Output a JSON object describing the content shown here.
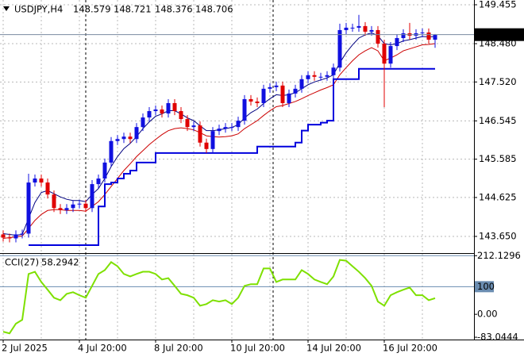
{
  "chart_data": [
    {
      "type": "candlestick",
      "symbol": "USDJPY,H4",
      "categories": [
        "2 Jul 2025",
        null,
        null,
        null,
        null,
        null,
        null,
        null,
        null,
        null,
        null,
        null,
        "4 Jul 20:00",
        null,
        null,
        null,
        null,
        null,
        null,
        null,
        null,
        null,
        null,
        null,
        "8 Jul 20:00",
        null,
        null,
        null,
        null,
        null,
        null,
        null,
        null,
        null,
        null,
        null,
        "10 Jul 20:00",
        null,
        null,
        null,
        null,
        null,
        null,
        null,
        null,
        null,
        null,
        null,
        "14 Jul 20:00",
        null,
        null,
        null,
        null,
        null,
        null,
        null,
        null,
        null,
        null,
        null,
        "16 Jul 20:00",
        null,
        null,
        null,
        null,
        null,
        null,
        null,
        null
      ],
      "open": [
        143.7,
        143.62,
        143.6,
        143.7,
        143.72,
        145.0,
        145.1,
        145.0,
        144.7,
        144.36,
        144.31,
        144.36,
        144.45,
        144.47,
        144.36,
        144.96,
        145.1,
        145.5,
        146.04,
        146.09,
        146.15,
        146.09,
        146.39,
        146.63,
        146.79,
        146.83,
        146.73,
        146.99,
        146.79,
        146.59,
        146.39,
        146.43,
        146.0,
        145.84,
        146.29,
        146.35,
        146.39,
        146.39,
        146.55,
        147.09,
        147.03,
        146.99,
        147.35,
        147.39,
        147.43,
        146.99,
        147.23,
        147.35,
        147.59,
        147.69,
        147.65,
        147.65,
        147.69,
        147.88,
        148.82,
        148.88,
        148.88,
        148.92,
        148.78,
        148.82,
        148.48,
        147.98,
        148.42,
        148.62,
        148.74,
        148.68,
        148.74,
        148.76,
        148.579
      ],
      "high": [
        143.8,
        143.72,
        143.8,
        143.82,
        145.22,
        145.2,
        145.2,
        145.1,
        144.8,
        144.46,
        144.46,
        144.55,
        144.57,
        144.57,
        145.06,
        145.2,
        145.6,
        146.14,
        146.19,
        146.25,
        146.25,
        146.49,
        146.73,
        146.89,
        146.93,
        146.93,
        147.09,
        147.09,
        146.89,
        146.69,
        146.53,
        146.53,
        146.1,
        146.39,
        146.45,
        146.49,
        146.49,
        146.65,
        147.19,
        147.19,
        147.13,
        147.45,
        147.49,
        147.53,
        147.53,
        147.33,
        147.45,
        147.69,
        147.79,
        147.79,
        147.75,
        147.79,
        147.98,
        148.98,
        149.0,
        148.98,
        149.2,
        149.02,
        148.92,
        148.92,
        148.58,
        148.52,
        148.72,
        148.84,
        149.0,
        148.84,
        148.86,
        148.86,
        148.721
      ],
      "low": [
        143.52,
        143.5,
        143.5,
        143.6,
        143.62,
        144.9,
        144.9,
        144.6,
        144.26,
        144.21,
        144.21,
        144.26,
        144.35,
        144.26,
        144.26,
        144.86,
        145.0,
        145.4,
        145.94,
        145.99,
        145.99,
        145.99,
        146.29,
        146.53,
        146.69,
        146.63,
        146.63,
        146.69,
        146.49,
        146.29,
        146.29,
        145.9,
        145.74,
        145.74,
        146.19,
        146.25,
        146.29,
        146.29,
        146.45,
        146.93,
        146.89,
        146.89,
        147.25,
        147.29,
        146.89,
        146.89,
        147.13,
        147.25,
        147.49,
        147.55,
        147.55,
        147.55,
        147.59,
        147.78,
        148.72,
        148.78,
        148.78,
        148.68,
        148.68,
        148.38,
        146.89,
        147.88,
        148.32,
        148.52,
        148.58,
        148.58,
        148.64,
        148.48,
        148.376
      ],
      "close": [
        143.62,
        143.6,
        143.7,
        143.72,
        145.0,
        145.1,
        145.0,
        144.7,
        144.36,
        144.31,
        144.36,
        144.45,
        144.47,
        144.36,
        144.96,
        145.1,
        145.5,
        146.04,
        146.09,
        146.15,
        146.09,
        146.39,
        146.63,
        146.79,
        146.83,
        146.73,
        146.99,
        146.79,
        146.59,
        146.39,
        146.43,
        146.0,
        145.84,
        146.29,
        146.35,
        146.39,
        146.39,
        146.55,
        147.09,
        147.03,
        146.99,
        147.35,
        147.39,
        147.43,
        146.99,
        147.23,
        147.35,
        147.59,
        147.69,
        147.65,
        147.65,
        147.69,
        147.88,
        148.82,
        148.88,
        148.88,
        148.92,
        148.78,
        148.82,
        148.48,
        147.98,
        148.42,
        148.62,
        148.74,
        148.68,
        148.74,
        148.76,
        148.58,
        148.706
      ],
      "up_color": "#1010e0",
      "down_color": "#e00000",
      "overlays": [
        {
          "color": "#000080",
          "style": "line",
          "values": [
            143.72,
            143.7,
            143.68,
            143.7,
            144.1,
            144.5,
            144.75,
            144.8,
            144.72,
            144.64,
            144.58,
            144.55,
            144.55,
            144.52,
            144.7,
            144.85,
            145.1,
            145.4,
            145.65,
            145.85,
            145.98,
            146.15,
            146.35,
            146.52,
            146.66,
            146.72,
            146.8,
            146.8,
            146.72,
            146.62,
            146.55,
            146.42,
            146.3,
            146.3,
            146.32,
            146.35,
            146.38,
            146.45,
            146.62,
            146.75,
            146.84,
            146.98,
            147.1,
            147.2,
            147.18,
            147.2,
            147.25,
            147.35,
            147.45,
            147.52,
            147.57,
            147.62,
            147.7,
            148.0,
            148.25,
            148.45,
            148.62,
            148.7,
            148.75,
            148.68,
            148.48,
            148.45,
            148.48,
            148.55,
            148.58,
            148.62,
            148.66,
            148.65,
            148.66
          ]
        },
        {
          "color": "#cc0000",
          "style": "line",
          "values": [
            143.6,
            143.62,
            143.64,
            143.66,
            143.85,
            144.05,
            144.2,
            144.3,
            144.32,
            144.32,
            144.3,
            144.3,
            144.3,
            144.28,
            144.4,
            144.52,
            144.7,
            144.9,
            145.1,
            145.3,
            145.47,
            145.65,
            145.8,
            145.95,
            146.08,
            146.2,
            146.3,
            146.35,
            146.37,
            146.35,
            146.32,
            146.25,
            146.17,
            146.15,
            146.14,
            146.15,
            146.17,
            146.22,
            146.35,
            146.45,
            146.55,
            146.68,
            146.8,
            146.9,
            146.93,
            146.98,
            147.03,
            147.1,
            147.18,
            147.25,
            147.32,
            147.38,
            147.45,
            147.7,
            147.88,
            148.05,
            148.2,
            148.3,
            148.38,
            148.3,
            148.05,
            148.12,
            148.2,
            148.3,
            148.35,
            148.4,
            148.45,
            148.46,
            148.48
          ]
        },
        {
          "color": "#0000dd",
          "style": "step",
          "values": [
            null,
            null,
            null,
            null,
            143.43,
            143.43,
            143.43,
            143.43,
            143.43,
            143.43,
            143.43,
            143.43,
            143.43,
            143.43,
            143.43,
            144.4,
            144.96,
            145.0,
            145.1,
            145.22,
            145.3,
            145.5,
            145.5,
            145.5,
            145.74,
            145.74,
            145.74,
            145.74,
            145.74,
            145.74,
            145.74,
            145.74,
            145.74,
            145.74,
            145.74,
            145.74,
            145.74,
            145.74,
            145.74,
            145.74,
            145.9,
            145.9,
            145.9,
            145.9,
            145.9,
            145.9,
            146.0,
            146.3,
            146.45,
            146.45,
            146.5,
            146.55,
            147.59,
            147.59,
            147.59,
            147.59,
            147.85,
            147.85,
            147.85,
            147.85,
            147.85,
            147.85,
            147.85,
            147.85,
            147.85,
            147.85,
            147.85,
            147.85,
            147.85
          ]
        }
      ],
      "ylim": [
        143.252,
        149.574
      ],
      "yticks": [
        149.455,
        {
          "value": 148.48,
          "label": "148.480"
        },
        {
          "value": 147.52,
          "label": "147.520"
        },
        146.545,
        145.585,
        144.625,
        {
          "value": 143.65,
          "label": "143.650"
        }
      ],
      "grid": true
    },
    {
      "type": "line",
      "name": "CCI(27)",
      "color": "#7ee000",
      "values": [
        -63,
        -69,
        -34,
        -20,
        146,
        154,
        117,
        89,
        60,
        51,
        74,
        80,
        69,
        60,
        103,
        146,
        160,
        189,
        174,
        146,
        137,
        146,
        154,
        154,
        146,
        126,
        131,
        103,
        74,
        69,
        60,
        31,
        37,
        51,
        46,
        51,
        37,
        60,
        103,
        109,
        109,
        166,
        166,
        117,
        126,
        126,
        126,
        160,
        146,
        126,
        117,
        109,
        137,
        197,
        194,
        174,
        154,
        131,
        103,
        46,
        31,
        69,
        80,
        89,
        97,
        69,
        69,
        51,
        58.2942
      ],
      "ylim": [
        -91.4,
        213
      ],
      "yticks": [
        212.1296,
        100,
        {
          "value": 0,
          "label": "0.00"
        },
        -83.0444
      ]
    }
  ]
}
